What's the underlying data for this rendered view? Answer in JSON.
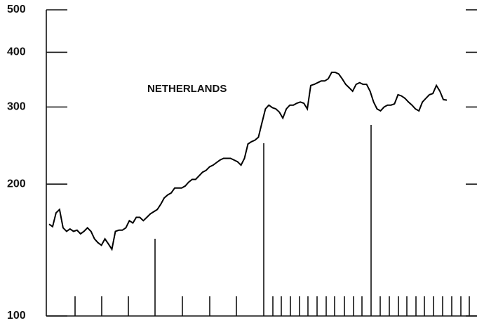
{
  "chart_data": {
    "type": "line",
    "title": "NETHERLANDS",
    "log_scale": true,
    "color": "#000000",
    "values": [
      162,
      160,
      172,
      175,
      159,
      156,
      158,
      156,
      157,
      154,
      156,
      159,
      156,
      150,
      147,
      145,
      150,
      146,
      142,
      156,
      157,
      157,
      159,
      165,
      163,
      168,
      168,
      165,
      168,
      171,
      173,
      175,
      180,
      186,
      189,
      191,
      196,
      196,
      196,
      198,
      202,
      205,
      205,
      209,
      213,
      215,
      219,
      221,
      224,
      227,
      229,
      229,
      229,
      227,
      225,
      221,
      229,
      247,
      250,
      252,
      256,
      276,
      297,
      303,
      299,
      297,
      292,
      283,
      297,
      303,
      303,
      306,
      308,
      306,
      297,
      336,
      338,
      341,
      344,
      344,
      348,
      360,
      360,
      357,
      348,
      338,
      332,
      326,
      338,
      341,
      338,
      338,
      326,
      308,
      297,
      294,
      300,
      303,
      303,
      305,
      320,
      318,
      314,
      308,
      303,
      297,
      294,
      308,
      314,
      320,
      322,
      336,
      326,
      312,
      311
    ],
    "ylim": [
      100,
      500
    ],
    "yticks": [
      100,
      200,
      300,
      400,
      500
    ]
  }
}
